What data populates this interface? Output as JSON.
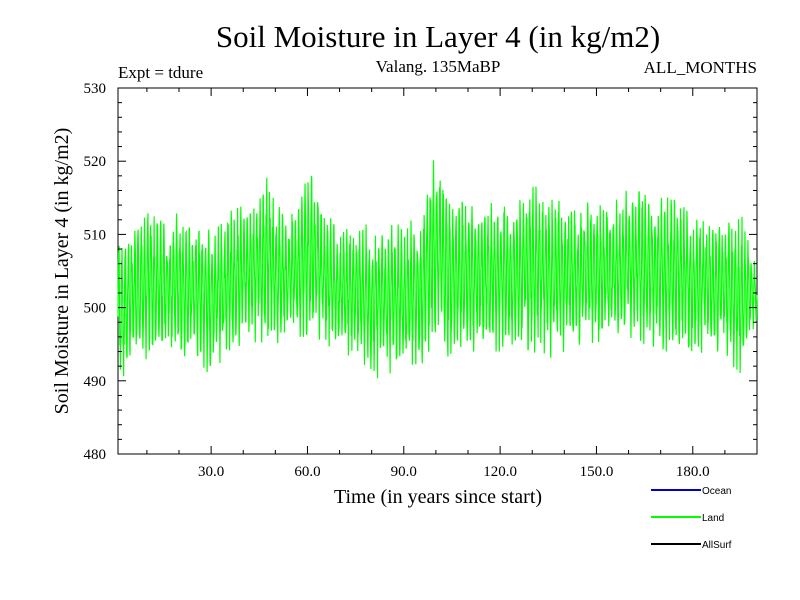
{
  "chart_data": {
    "type": "line",
    "title": "Soil Moisture in Layer 4 (in kg/m2)",
    "subtitle_left": "Expt = tdure",
    "subtitle_center": "Valang.  135MaBP",
    "subtitle_right": "ALL_MONTHS",
    "xlabel": "Time (in years since start)",
    "ylabel": "Soil Moisture in Layer 4 (in kg/m2)",
    "xlim": [
      1,
      200
    ],
    "ylim": [
      480,
      530
    ],
    "x_ticks": [
      30,
      60,
      90,
      120,
      150,
      180
    ],
    "x_tick_labels": [
      "30.0",
      "60.0",
      "90.0",
      "120.0",
      "150.0",
      "180.0"
    ],
    "y_ticks": [
      480,
      490,
      500,
      510,
      520,
      530
    ],
    "y_tick_labels": [
      "480",
      "490",
      "500",
      "510",
      "520",
      "530"
    ],
    "grid": false,
    "legend_position": "bottom-right",
    "series": [
      {
        "name": "Ocean",
        "color": "#0000cc",
        "values": []
      },
      {
        "name": "Land",
        "color": "#00ff00",
        "description": "monthly values oscillating between about 490 and 518 kg/m2, mean about 504",
        "x": [
          1,
          5,
          10,
          15,
          20,
          25,
          30,
          35,
          40,
          45,
          48,
          50,
          55,
          60,
          63,
          65,
          70,
          75,
          80,
          85,
          90,
          95,
          99,
          101,
          105,
          110,
          115,
          120,
          125,
          130,
          135,
          140,
          145,
          150,
          155,
          160,
          165,
          170,
          175,
          180,
          185,
          190,
          195,
          200
        ],
        "max": [
          510,
          511,
          514,
          512,
          513,
          511,
          512,
          513,
          514,
          516,
          519,
          514,
          513,
          518,
          518,
          514,
          510,
          512,
          511,
          512,
          511,
          513,
          520,
          521,
          515,
          515,
          514,
          515,
          514,
          518,
          515,
          515,
          514,
          515,
          514,
          517,
          516,
          516,
          516,
          514,
          513,
          512,
          513,
          506
        ],
        "min": [
          489,
          492,
          493,
          494,
          493,
          494,
          490,
          494,
          495,
          495,
          496,
          495,
          496,
          496,
          496,
          495,
          494,
          493,
          490,
          491,
          491,
          492,
          494,
          494,
          493,
          494,
          494,
          494,
          494,
          494,
          493,
          494,
          495,
          495,
          495,
          496,
          495,
          494,
          494,
          493,
          494,
          494,
          490,
          498
        ]
      },
      {
        "name": "AllSurf",
        "color": "#000000",
        "values": []
      }
    ]
  }
}
